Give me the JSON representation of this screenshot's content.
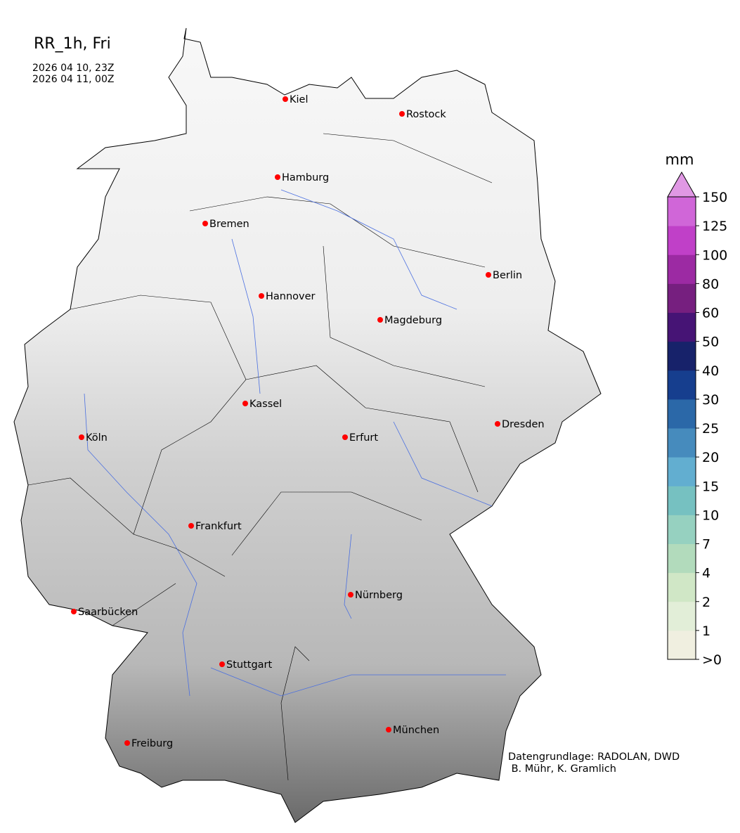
{
  "header": {
    "title": "RR_1h, Fri",
    "time_start": "2026 04 10, 23Z",
    "time_end": "2026 04 11, 00Z"
  },
  "cities": [
    {
      "name": "Kiel"
    },
    {
      "name": "Rostock"
    },
    {
      "name": "Hamburg"
    },
    {
      "name": "Bremen"
    },
    {
      "name": "Berlin"
    },
    {
      "name": "Hannover"
    },
    {
      "name": "Magdeburg"
    },
    {
      "name": "Kassel"
    },
    {
      "name": "Dresden"
    },
    {
      "name": "Köln"
    },
    {
      "name": "Erfurt"
    },
    {
      "name": "Frankfurt"
    },
    {
      "name": "Nürnberg"
    },
    {
      "name": "Saarbücken"
    },
    {
      "name": "Stuttgart"
    },
    {
      "name": "München"
    },
    {
      "name": "Freiburg"
    }
  ],
  "colorbar": {
    "unit": "mm",
    "ticks": [
      ">0",
      "1",
      "2",
      "4",
      "7",
      "10",
      "15",
      "20",
      "25",
      "30",
      "40",
      "50",
      "60",
      "80",
      "100",
      "125",
      "150"
    ],
    "colors": [
      "#f0efe0",
      "#e2eed8",
      "#d0e7c6",
      "#b2dbbc",
      "#96d1c0",
      "#76c1c1",
      "#62aed0",
      "#468bbd",
      "#2b68a8",
      "#163e8e",
      "#17226a",
      "#461475",
      "#761f7f",
      "#9c2aa3",
      "#c040c8",
      "#d066d8"
    ],
    "extend_color": "#e098e4"
  },
  "marker_color": "#ff0000",
  "river_color": "#4a6fe0",
  "credits": {
    "line1": "Datengrundlage: RADOLAN, DWD",
    "line2": " B. Mühr, K. Gramlich"
  }
}
